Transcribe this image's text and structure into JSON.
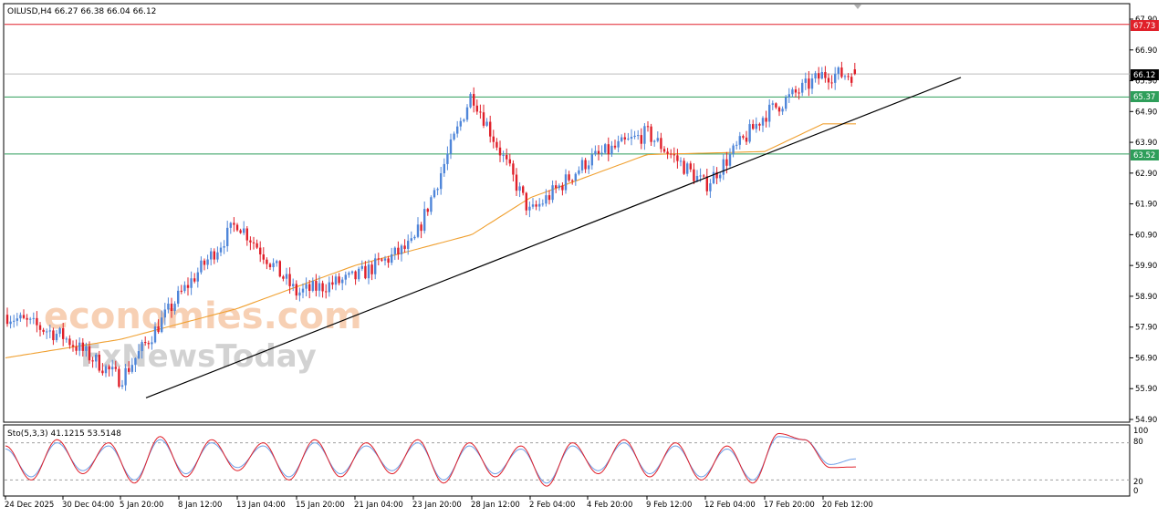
{
  "header": {
    "symbol_line": "OILUSD,H4  66.27 66.38 66.04 66.12"
  },
  "watermark": {
    "line1": "economies.com",
    "line2": "FxNewsToday"
  },
  "colors": {
    "bull": "#4f86d9",
    "bear": "#e0202a",
    "ma": "#f0a030",
    "resistance": "#e0202a",
    "support": "#2e9e5a",
    "price_line": "#bdbdbd",
    "trendline": "#000000",
    "stoch_main": "#e0202a",
    "stoch_signal": "#6fa0e8",
    "badge_price": "#000000"
  },
  "price_axis": {
    "ticks": [
      "67.90",
      "66.90",
      "65.90",
      "64.90",
      "63.90",
      "62.90",
      "61.90",
      "60.90",
      "59.90",
      "58.90",
      "57.90",
      "56.90",
      "55.90",
      "54.90"
    ]
  },
  "levels": {
    "resistance": "67.73",
    "current": "66.12",
    "support_1": "65.37",
    "support_2": "63.52"
  },
  "stochastic": {
    "label": "Sto(5,3,3) 41.1215 53.5148",
    "ticks": [
      "100",
      "80",
      "20",
      "0"
    ]
  },
  "time_axis": {
    "labels": [
      "24 Dec 2025",
      "30 Dec 04:00",
      "5 Jan 20:00",
      "8 Jan 12:00",
      "13 Jan 04:00",
      "15 Jan 20:00",
      "21 Jan 04:00",
      "23 Jan 20:00",
      "28 Jan 12:00",
      "2 Feb 04:00",
      "4 Feb 20:00",
      "9 Feb 12:00",
      "12 Feb 04:00",
      "17 Feb 20:00",
      "20 Feb 12:00"
    ]
  },
  "chart_data": [
    {
      "type": "candlestick",
      "title": "OILUSD,H4",
      "ohlc_last": {
        "open": 66.27,
        "high": 66.38,
        "low": 66.04,
        "close": 66.12
      },
      "ylim": [
        54.9,
        67.9
      ],
      "price_anchors": [
        {
          "x": "24 Dec 2025",
          "y": 58.3
        },
        {
          "x": "30 Dec 04:00",
          "y": 57.6
        },
        {
          "x": "5 Jan 20:00",
          "y": 56.2
        },
        {
          "x": "8 Jan 12:00",
          "y": 58.9
        },
        {
          "x": "13 Jan 04:00",
          "y": 61.3
        },
        {
          "x": "15 Jan 20:00",
          "y": 59.0
        },
        {
          "x": "21 Jan 04:00",
          "y": 59.5
        },
        {
          "x": "23 Jan 20:00",
          "y": 60.6
        },
        {
          "x": "28 Jan 12:00",
          "y": 65.5
        },
        {
          "x": "2 Feb 04:00",
          "y": 61.6
        },
        {
          "x": "4 Feb 20:00",
          "y": 63.3
        },
        {
          "x": "9 Feb 12:00",
          "y": 64.2
        },
        {
          "x": "12 Feb 04:00",
          "y": 62.5
        },
        {
          "x": "17 Feb 20:00",
          "y": 64.8
        },
        {
          "x": "20 Feb 12:00",
          "y": 66.1
        }
      ],
      "moving_average_anchors": [
        {
          "x": "24 Dec 2025",
          "y": 56.9
        },
        {
          "x": "5 Jan 20:00",
          "y": 57.5
        },
        {
          "x": "13 Jan 04:00",
          "y": 58.5
        },
        {
          "x": "21 Jan 04:00",
          "y": 59.9
        },
        {
          "x": "28 Jan 12:00",
          "y": 60.9
        },
        {
          "x": "2 Feb 04:00",
          "y": 62.1
        },
        {
          "x": "9 Feb 12:00",
          "y": 63.5
        },
        {
          "x": "17 Feb 20:00",
          "y": 63.6
        },
        {
          "x": "20 Feb 12:00",
          "y": 64.5
        }
      ],
      "trendline": {
        "from": {
          "x": "5 Jan 20:00",
          "y": 55.6
        },
        "to": {
          "x": "20 Feb 12:00",
          "y": 64.3
        }
      },
      "horizontal_levels": [
        67.73,
        66.12,
        65.37,
        63.52
      ]
    },
    {
      "type": "line",
      "title": "Sto(5,3,3)",
      "ylim": [
        0,
        100
      ],
      "series": [
        {
          "name": "41.1215",
          "values": [
            75,
            20,
            85,
            30,
            80,
            15,
            90,
            25,
            85,
            35,
            80,
            20,
            85,
            25,
            80,
            30,
            85,
            15,
            80,
            25,
            75,
            10,
            80,
            30,
            85,
            25,
            80,
            20,
            75,
            15,
            95,
            85,
            40,
            41
          ]
        },
        {
          "name": "53.5148",
          "values": [
            70,
            25,
            80,
            35,
            75,
            20,
            85,
            30,
            80,
            40,
            75,
            25,
            80,
            30,
            75,
            35,
            80,
            20,
            75,
            30,
            70,
            15,
            75,
            35,
            80,
            30,
            75,
            25,
            70,
            20,
            90,
            85,
            45,
            54
          ]
        }
      ],
      "levels": [
        80,
        20
      ]
    }
  ]
}
